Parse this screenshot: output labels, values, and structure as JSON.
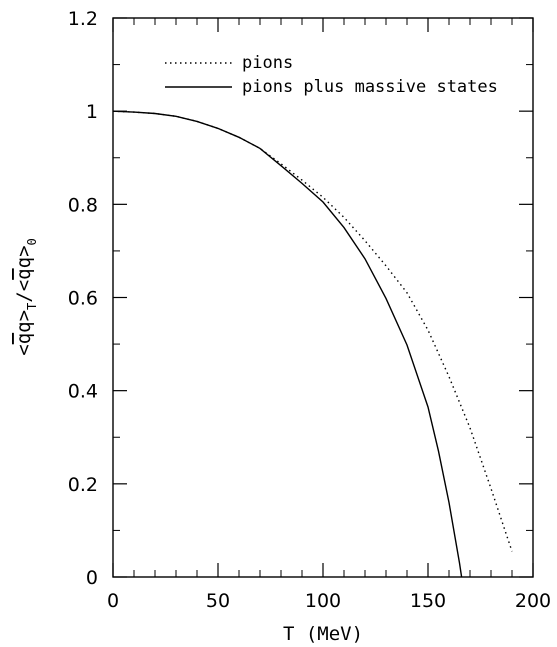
{
  "chart_data": {
    "type": "line",
    "title": "",
    "xlabel": "T (MeV)",
    "ylabel": {
      "parts": [
        "<",
        "q",
        "q>",
        "T",
        "/<",
        "q",
        "q>",
        "0"
      ]
    },
    "xlim": [
      0,
      200
    ],
    "ylim": [
      0,
      1.2
    ],
    "x_ticks": [
      0,
      50,
      100,
      150,
      200
    ],
    "x_tick_labels": [
      "0",
      "50",
      "100",
      "150",
      "200"
    ],
    "y_ticks": [
      0,
      0.2,
      0.4,
      0.6,
      0.8,
      1,
      1.2
    ],
    "y_tick_labels": [
      "0",
      "0.2",
      "0.4",
      "0.6",
      "0.8",
      "1",
      "1.2"
    ],
    "grid": false,
    "legend_position": "top-left",
    "series": [
      {
        "name": "pions",
        "style": "dotted",
        "color": "#000000",
        "x": [
          0,
          10,
          20,
          30,
          40,
          50,
          60,
          70,
          80,
          90,
          100,
          110,
          120,
          130,
          140,
          150,
          160,
          170,
          180,
          190
        ],
        "y": [
          1.0,
          0.998,
          0.995,
          0.989,
          0.978,
          0.963,
          0.944,
          0.92,
          0.887,
          0.852,
          0.815,
          0.772,
          0.722,
          0.668,
          0.61,
          0.53,
          0.43,
          0.32,
          0.19,
          0.055
        ]
      },
      {
        "name": "pions plus massive states",
        "style": "solid",
        "color": "#000000",
        "x": [
          0,
          10,
          20,
          30,
          40,
          50,
          60,
          70,
          80,
          90,
          100,
          110,
          120,
          130,
          140,
          150,
          155,
          160,
          165,
          166
        ],
        "y": [
          1.0,
          0.998,
          0.995,
          0.989,
          0.978,
          0.963,
          0.944,
          0.92,
          0.883,
          0.845,
          0.805,
          0.75,
          0.683,
          0.598,
          0.498,
          0.365,
          0.27,
          0.16,
          0.03,
          0.0
        ]
      }
    ]
  }
}
